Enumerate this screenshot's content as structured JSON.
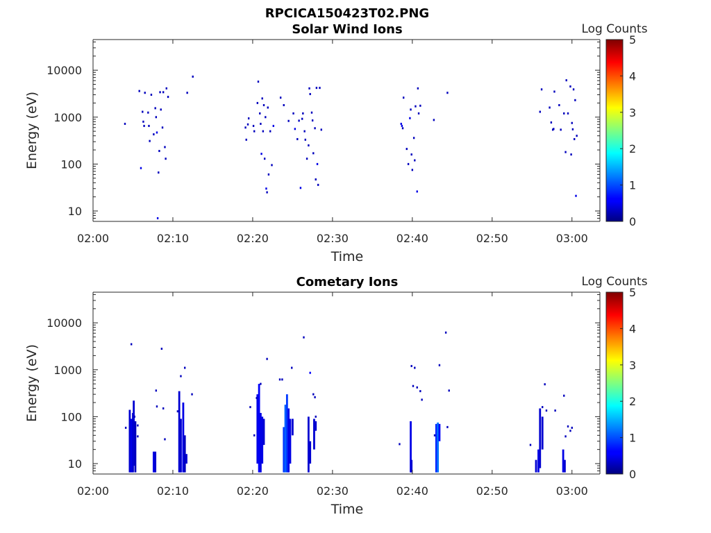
{
  "figure_title": "RPCICA150423T02.PNG",
  "chart_data": [
    {
      "type": "heatmap",
      "title": "Solar Wind Ions",
      "xlabel": "Time",
      "ylabel": "Energy (eV)",
      "x_ticks": [
        "02:00",
        "02:10",
        "02:20",
        "02:30",
        "02:40",
        "02:50",
        "03:00"
      ],
      "x_range_minutes": [
        0,
        63.5
      ],
      "y_ticks": [
        "10",
        "100",
        "1000",
        "10000"
      ],
      "y_scale": "log",
      "ylim": [
        6,
        45000
      ],
      "colorbar": {
        "label": "Log Counts",
        "ticks": [
          "0",
          "1",
          "2",
          "3",
          "4",
          "5"
        ],
        "range": [
          0,
          5
        ],
        "colormap": "jet"
      },
      "points": [
        [
          4.0,
          720,
          0.3
        ],
        [
          5.8,
          3600,
          0.3
        ],
        [
          6.2,
          1300,
          0.3
        ],
        [
          6.3,
          800,
          0.3
        ],
        [
          6.4,
          650,
          0.3
        ],
        [
          6.0,
          82,
          0.5
        ],
        [
          6.5,
          3300,
          0.3
        ],
        [
          6.9,
          1250,
          0.3
        ],
        [
          7.0,
          650,
          0.3
        ],
        [
          7.1,
          310,
          0.3
        ],
        [
          7.3,
          3000,
          0.3
        ],
        [
          7.6,
          430,
          0.3
        ],
        [
          7.8,
          1550,
          0.3
        ],
        [
          7.9,
          1000,
          0.3
        ],
        [
          8.0,
          470,
          0.5
        ],
        [
          8.1,
          7,
          0.5
        ],
        [
          8.2,
          66,
          0.3
        ],
        [
          8.3,
          190,
          0.3
        ],
        [
          8.4,
          3400,
          0.3
        ],
        [
          8.5,
          1450,
          0.3
        ],
        [
          8.7,
          600,
          0.3
        ],
        [
          8.8,
          3400,
          0.3
        ],
        [
          9.0,
          230,
          0.3
        ],
        [
          9.1,
          130,
          0.3
        ],
        [
          9.2,
          4100,
          0.3
        ],
        [
          9.4,
          2700,
          0.3
        ],
        [
          11.8,
          3300,
          0.3
        ],
        [
          12.5,
          7300,
          0.3
        ],
        [
          19.1,
          600,
          0.3
        ],
        [
          19.2,
          330,
          0.3
        ],
        [
          19.4,
          700,
          0.3
        ],
        [
          19.5,
          940,
          0.3
        ],
        [
          20.1,
          650,
          0.3
        ],
        [
          20.2,
          500,
          0.3
        ],
        [
          20.6,
          2000,
          0.3
        ],
        [
          20.7,
          5700,
          0.3
        ],
        [
          20.9,
          1200,
          0.3
        ],
        [
          21.0,
          720,
          0.3
        ],
        [
          21.1,
          165,
          0.5
        ],
        [
          21.2,
          2500,
          0.3
        ],
        [
          21.3,
          500,
          0.3
        ],
        [
          21.4,
          1800,
          0.3
        ],
        [
          21.5,
          130,
          0.3
        ],
        [
          21.6,
          1000,
          0.3
        ],
        [
          21.7,
          30,
          0.5
        ],
        [
          21.9,
          1600,
          0.3
        ],
        [
          21.8,
          25,
          0.3
        ],
        [
          22.0,
          60,
          0.3
        ],
        [
          22.2,
          500,
          0.3
        ],
        [
          22.4,
          95,
          0.3
        ],
        [
          22.6,
          650,
          0.5
        ],
        [
          23.5,
          2600,
          0.3
        ],
        [
          23.9,
          1800,
          0.3
        ],
        [
          24.5,
          830,
          0.3
        ],
        [
          25.1,
          1200,
          0.3
        ],
        [
          25.3,
          560,
          0.5
        ],
        [
          25.6,
          340,
          0.3
        ],
        [
          26.0,
          31,
          0.5
        ],
        [
          25.8,
          840,
          0.3
        ],
        [
          26.2,
          920,
          0.3
        ],
        [
          26.3,
          1200,
          0.3
        ],
        [
          26.5,
          500,
          0.3
        ],
        [
          26.6,
          330,
          0.3
        ],
        [
          26.8,
          130,
          0.3
        ],
        [
          27.0,
          250,
          0.3
        ],
        [
          27.1,
          4100,
          0.3
        ],
        [
          27.2,
          3100,
          0.3
        ],
        [
          27.4,
          1250,
          0.3
        ],
        [
          27.5,
          850,
          0.3
        ],
        [
          27.6,
          170,
          0.3
        ],
        [
          27.8,
          580,
          0.3
        ],
        [
          27.9,
          47,
          0.3
        ],
        [
          28.1,
          100,
          0.5
        ],
        [
          28.0,
          4200,
          0.3
        ],
        [
          28.2,
          36,
          0.3
        ],
        [
          28.4,
          4200,
          0.3
        ],
        [
          28.6,
          540,
          0.3
        ],
        [
          38.6,
          720,
          0.5
        ],
        [
          38.7,
          650,
          0.5
        ],
        [
          38.8,
          580,
          0.3
        ],
        [
          38.9,
          2600,
          0.3
        ],
        [
          39.3,
          210,
          0.3
        ],
        [
          39.5,
          100,
          0.3
        ],
        [
          39.7,
          950,
          0.5
        ],
        [
          39.8,
          1450,
          0.3
        ],
        [
          39.9,
          160,
          0.3
        ],
        [
          40.0,
          75,
          0.3
        ],
        [
          40.2,
          360,
          0.3
        ],
        [
          40.3,
          120,
          0.3
        ],
        [
          40.4,
          1700,
          0.3
        ],
        [
          40.6,
          26,
          0.5
        ],
        [
          40.7,
          4100,
          0.3
        ],
        [
          40.8,
          1200,
          0.3
        ],
        [
          41.0,
          1750,
          0.3
        ],
        [
          42.7,
          870,
          0.3
        ],
        [
          44.4,
          3300,
          0.3
        ],
        [
          56.0,
          1300,
          0.3
        ],
        [
          56.2,
          3900,
          0.3
        ],
        [
          57.2,
          1600,
          0.3
        ],
        [
          57.4,
          770,
          0.3
        ],
        [
          57.6,
          540,
          0.3
        ],
        [
          57.7,
          560,
          0.3
        ],
        [
          57.8,
          3500,
          0.3
        ],
        [
          58.4,
          1800,
          0.3
        ],
        [
          58.6,
          540,
          0.3
        ],
        [
          59.0,
          1200,
          0.3
        ],
        [
          59.2,
          180,
          0.3
        ],
        [
          59.3,
          6100,
          0.3
        ],
        [
          59.5,
          1200,
          0.3
        ],
        [
          59.8,
          4500,
          0.3
        ],
        [
          59.9,
          160,
          0.3
        ],
        [
          60.0,
          750,
          0.3
        ],
        [
          60.1,
          550,
          0.3
        ],
        [
          60.2,
          3900,
          0.3
        ],
        [
          60.3,
          340,
          0.3
        ],
        [
          60.4,
          2300,
          0.3
        ],
        [
          60.5,
          21,
          0.5
        ],
        [
          60.6,
          400,
          0.3
        ]
      ]
    },
    {
      "type": "heatmap",
      "title": "Cometary Ions",
      "xlabel": "Time",
      "ylabel": "Energy (eV)",
      "x_ticks": [
        "02:00",
        "02:10",
        "02:20",
        "02:30",
        "02:40",
        "02:50",
        "03:00"
      ],
      "x_range_minutes": [
        0,
        63.5
      ],
      "y_ticks": [
        "10",
        "100",
        "1000",
        "10000"
      ],
      "y_scale": "log",
      "ylim": [
        6,
        45000
      ],
      "colorbar": {
        "label": "Log Counts",
        "ticks": [
          "0",
          "1",
          "2",
          "3",
          "4",
          "5"
        ],
        "range": [
          0,
          5
        ],
        "colormap": "jet"
      },
      "columns": [
        [
          4.6,
          6.5,
          140,
          0.4
        ],
        [
          4.8,
          6.5,
          90,
          0.5
        ],
        [
          5.0,
          6.5,
          120,
          0.4
        ],
        [
          5.1,
          9,
          220,
          0.4
        ],
        [
          5.3,
          6.5,
          80,
          0.3
        ],
        [
          7.6,
          6.5,
          18,
          0.5
        ],
        [
          7.8,
          6.5,
          18,
          0.4
        ],
        [
          10.8,
          6.5,
          350,
          0.4
        ],
        [
          11.0,
          6.5,
          90,
          0.4
        ],
        [
          11.3,
          6.5,
          200,
          0.5
        ],
        [
          11.5,
          6.5,
          40,
          0.3
        ],
        [
          11.7,
          10,
          16,
          0.4
        ],
        [
          20.6,
          10,
          300,
          0.5
        ],
        [
          20.8,
          6.5,
          500,
          0.6
        ],
        [
          21.0,
          6.5,
          120,
          0.5
        ],
        [
          21.2,
          10,
          100,
          0.5
        ],
        [
          21.4,
          25,
          90,
          0.4
        ],
        [
          23.9,
          6.5,
          60,
          0.9
        ],
        [
          24.1,
          6.5,
          180,
          1.1
        ],
        [
          24.3,
          6.5,
          300,
          0.9
        ],
        [
          24.5,
          6.5,
          150,
          0.5
        ],
        [
          24.7,
          10,
          90,
          0.5
        ],
        [
          25.0,
          40,
          90,
          0.4
        ],
        [
          27.0,
          6.5,
          100,
          0.4
        ],
        [
          27.2,
          10,
          30,
          0.4
        ],
        [
          27.7,
          20,
          90,
          0.4
        ],
        [
          27.9,
          50,
          80,
          0.4
        ],
        [
          39.8,
          6.5,
          80,
          0.5
        ],
        [
          39.9,
          6.5,
          12,
          0.4
        ],
        [
          43.0,
          6.5,
          70,
          0.8
        ],
        [
          43.2,
          6.5,
          75,
          1.2
        ],
        [
          43.4,
          30,
          70,
          0.6
        ],
        [
          55.5,
          6.5,
          12,
          0.4
        ],
        [
          55.8,
          6.5,
          20,
          0.5
        ],
        [
          56.0,
          8,
          150,
          0.4
        ],
        [
          56.3,
          20,
          100,
          0.4
        ],
        [
          58.9,
          6.5,
          20,
          0.5
        ],
        [
          59.1,
          6.5,
          12,
          0.4
        ]
      ],
      "points": [
        [
          4.1,
          58,
          0.3
        ],
        [
          4.8,
          3500,
          0.3
        ],
        [
          5.2,
          100,
          0.3
        ],
        [
          5.6,
          65,
          0.3
        ],
        [
          5.6,
          38,
          0.3
        ],
        [
          7.9,
          360,
          0.3
        ],
        [
          8.0,
          165,
          0.3
        ],
        [
          8.6,
          2800,
          0.3
        ],
        [
          8.8,
          150,
          0.3
        ],
        [
          9.0,
          33,
          0.3
        ],
        [
          10.6,
          130,
          0.3
        ],
        [
          11.0,
          730,
          0.3
        ],
        [
          11.5,
          1100,
          0.3
        ],
        [
          12.4,
          300,
          0.3
        ],
        [
          19.7,
          160,
          0.3
        ],
        [
          20.2,
          40,
          0.3
        ],
        [
          20.5,
          250,
          0.3
        ],
        [
          21.0,
          500,
          0.3
        ],
        [
          21.8,
          1700,
          0.3
        ],
        [
          23.4,
          620,
          0.3
        ],
        [
          23.7,
          620,
          0.3
        ],
        [
          24.9,
          1100,
          0.3
        ],
        [
          26.4,
          4900,
          0.3
        ],
        [
          27.2,
          860,
          0.6
        ],
        [
          27.6,
          300,
          0.3
        ],
        [
          27.8,
          260,
          0.3
        ],
        [
          27.9,
          100,
          0.3
        ],
        [
          38.4,
          26,
          0.3
        ],
        [
          39.9,
          1200,
          0.3
        ],
        [
          40.1,
          450,
          0.3
        ],
        [
          40.3,
          1100,
          0.3
        ],
        [
          40.6,
          420,
          0.3
        ],
        [
          41.0,
          350,
          0.3
        ],
        [
          41.2,
          230,
          0.3
        ],
        [
          42.8,
          40,
          0.3
        ],
        [
          43.4,
          1250,
          0.3
        ],
        [
          44.2,
          6200,
          0.3
        ],
        [
          44.4,
          60,
          0.3
        ],
        [
          44.6,
          360,
          0.3
        ],
        [
          54.8,
          25,
          0.3
        ],
        [
          56.3,
          160,
          0.3
        ],
        [
          56.6,
          490,
          0.3
        ],
        [
          56.8,
          135,
          0.3
        ],
        [
          57.9,
          135,
          0.3
        ],
        [
          59.0,
          280,
          0.3
        ],
        [
          59.2,
          38,
          0.3
        ],
        [
          59.5,
          62,
          0.3
        ],
        [
          59.8,
          50,
          0.3
        ],
        [
          60.0,
          58,
          0.3
        ]
      ]
    }
  ]
}
